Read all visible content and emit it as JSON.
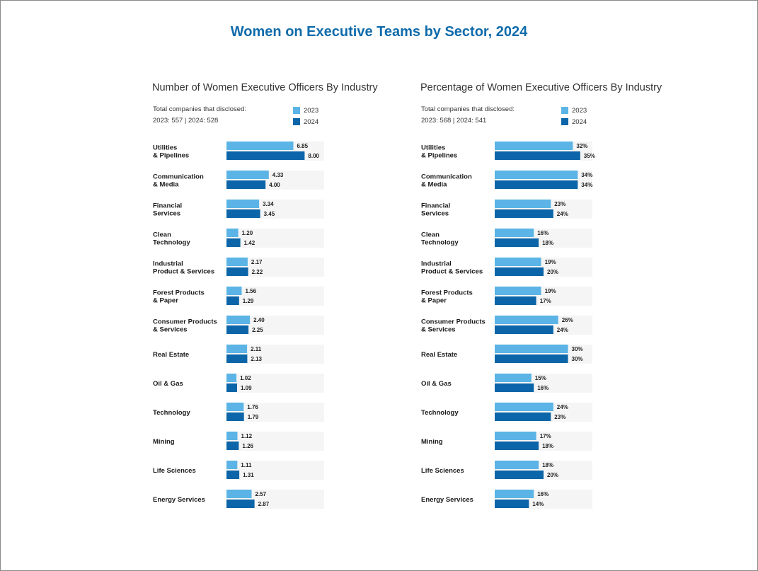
{
  "title": "Women on Executive Teams by Sector, 2024",
  "colors": {
    "y2023": "#5bb4e5",
    "y2024": "#0b65a8",
    "track": "#f5f5f5"
  },
  "legend": {
    "label_2023": "2023",
    "label_2024": "2024"
  },
  "charts": [
    {
      "title": "Number of Women Executive Officers By Industry",
      "disclosed_label": "Total companies that disclosed:",
      "disclosed_values": "2023: 557 |  2024: 528"
    },
    {
      "title": "Percentage of Women Executive Officers By Industry",
      "disclosed_label": "Total companies that disclosed:",
      "disclosed_values": "2023: 568 |  2024: 541"
    }
  ],
  "chart_data": [
    {
      "type": "bar",
      "orientation": "horizontal",
      "title": "Number of Women Executive Officers By Industry",
      "categories": [
        [
          "Utilities",
          "& Pipelines"
        ],
        [
          "Communication",
          "& Media"
        ],
        [
          "Financial",
          "Services"
        ],
        [
          "Clean",
          "Technology"
        ],
        [
          "Industrial",
          "Product & Services"
        ],
        [
          "Forest Products",
          "& Paper"
        ],
        [
          "Consumer Products",
          "& Services"
        ],
        [
          "Real Estate"
        ],
        [
          "Oil & Gas"
        ],
        [
          "Technology"
        ],
        [
          "Mining"
        ],
        [
          "Life Sciences"
        ],
        [
          "Energy Services"
        ]
      ],
      "xlim": [
        0,
        10
      ],
      "series": [
        {
          "name": "2023",
          "values": [
            6.85,
            4.33,
            3.34,
            1.2,
            2.17,
            1.56,
            2.4,
            2.11,
            1.02,
            1.76,
            1.12,
            1.11,
            2.57
          ],
          "labels": [
            "6.85",
            "4.33",
            "3.34",
            "1.20",
            "2.17",
            "1.56",
            "2.40",
            "2.11",
            "1.02",
            "1.76",
            "1.12",
            "1.11",
            "2.57"
          ]
        },
        {
          "name": "2024",
          "values": [
            8.0,
            4.0,
            3.45,
            1.42,
            2.22,
            1.29,
            2.25,
            2.13,
            1.09,
            1.79,
            1.26,
            1.31,
            2.87
          ],
          "labels": [
            "8.00",
            "4.00",
            "3.45",
            "1.42",
            "2.22",
            "1.29",
            "2.25",
            "2.13",
            "1.09",
            "1.79",
            "1.26",
            "1.31",
            "2.87"
          ]
        }
      ]
    },
    {
      "type": "bar",
      "orientation": "horizontal",
      "title": "Percentage of Women Executive Officers By Industry",
      "categories": [
        [
          "Utilities",
          "& Pipelines"
        ],
        [
          "Communication",
          "& Media"
        ],
        [
          "Financial",
          "Services"
        ],
        [
          "Clean",
          "Technology"
        ],
        [
          "Industrial",
          "Product & Services"
        ],
        [
          "Forest Products",
          "& Paper"
        ],
        [
          "Consumer Products",
          "& Services"
        ],
        [
          "Real Estate"
        ],
        [
          "Oil & Gas"
        ],
        [
          "Technology"
        ],
        [
          "Mining"
        ],
        [
          "Life Sciences"
        ],
        [
          "Energy Services"
        ]
      ],
      "xlim": [
        0,
        40
      ],
      "series": [
        {
          "name": "2023",
          "values": [
            32,
            34,
            23,
            16,
            19,
            19,
            26,
            30,
            15,
            24,
            17,
            18,
            16
          ],
          "labels": [
            "32%",
            "34%",
            "23%",
            "16%",
            "19%",
            "19%",
            "26%",
            "30%",
            "15%",
            "24%",
            "17%",
            "18%",
            "16%"
          ]
        },
        {
          "name": "2024",
          "values": [
            35,
            34,
            24,
            18,
            20,
            17,
            24,
            30,
            16,
            23,
            18,
            20,
            14
          ],
          "labels": [
            "35%",
            "34%",
            "24%",
            "18%",
            "20%",
            "17%",
            "24%",
            "30%",
            "16%",
            "23%",
            "18%",
            "20%",
            "14%"
          ]
        }
      ]
    }
  ]
}
